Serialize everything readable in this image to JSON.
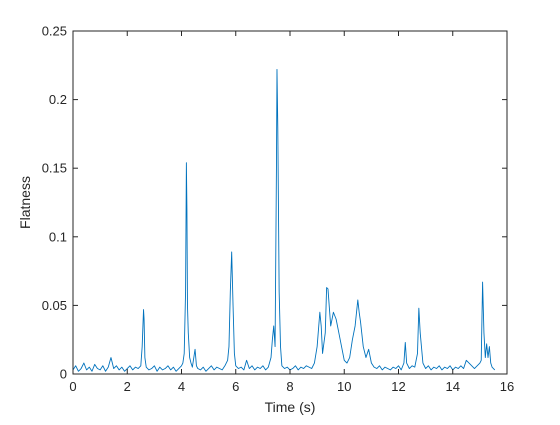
{
  "chart_data": {
    "type": "line",
    "title": "",
    "xlabel": "Time (s)",
    "ylabel": "Flatness",
    "xlim": [
      0,
      16
    ],
    "ylim": [
      0,
      0.25
    ],
    "xticks": [
      0,
      2,
      4,
      6,
      8,
      10,
      12,
      14,
      16
    ],
    "xtick_labels": [
      "0",
      "2",
      "4",
      "6",
      "8",
      "10",
      "12",
      "14",
      "16"
    ],
    "yticks": [
      0,
      0.05,
      0.1,
      0.15,
      0.2,
      0.25
    ],
    "ytick_labels": [
      "0",
      "0.05",
      "0.1",
      "0.15",
      "0.2",
      "0.25"
    ],
    "grid": false,
    "series": [
      {
        "color": "#0072BD",
        "x": [
          0,
          0.1,
          0.2,
          0.3,
          0.4,
          0.5,
          0.6,
          0.7,
          0.8,
          0.9,
          1.0,
          1.1,
          1.2,
          1.3,
          1.4,
          1.45,
          1.5,
          1.6,
          1.7,
          1.8,
          1.9,
          2.0,
          2.1,
          2.2,
          2.3,
          2.4,
          2.5,
          2.55,
          2.6,
          2.62,
          2.65,
          2.7,
          2.8,
          2.9,
          3.0,
          3.1,
          3.2,
          3.3,
          3.4,
          3.5,
          3.6,
          3.7,
          3.8,
          3.9,
          4.0,
          4.05,
          4.1,
          4.15,
          4.18,
          4.2,
          4.22,
          4.25,
          4.3,
          4.35,
          4.4,
          4.5,
          4.55,
          4.6,
          4.7,
          4.8,
          4.9,
          5.0,
          5.1,
          5.2,
          5.3,
          5.4,
          5.5,
          5.6,
          5.7,
          5.75,
          5.8,
          5.85,
          5.9,
          5.95,
          6.0,
          6.1,
          6.2,
          6.3,
          6.4,
          6.5,
          6.6,
          6.7,
          6.8,
          6.9,
          7.0,
          7.1,
          7.2,
          7.3,
          7.35,
          7.4,
          7.45,
          7.5,
          7.52,
          7.55,
          7.6,
          7.65,
          7.7,
          7.8,
          7.9,
          8.0,
          8.1,
          8.2,
          8.3,
          8.4,
          8.5,
          8.6,
          8.7,
          8.8,
          8.9,
          9.0,
          9.1,
          9.15,
          9.2,
          9.3,
          9.35,
          9.4,
          9.5,
          9.6,
          9.7,
          9.8,
          9.9,
          10.0,
          10.1,
          10.2,
          10.3,
          10.4,
          10.5,
          10.55,
          10.6,
          10.7,
          10.8,
          10.9,
          11.0,
          11.1,
          11.2,
          11.3,
          11.4,
          11.5,
          11.6,
          11.7,
          11.8,
          11.9,
          12.0,
          12.1,
          12.2,
          12.25,
          12.3,
          12.4,
          12.5,
          12.6,
          12.7,
          12.75,
          12.8,
          12.9,
          13.0,
          13.1,
          13.2,
          13.3,
          13.4,
          13.5,
          13.6,
          13.7,
          13.8,
          13.9,
          14.0,
          14.1,
          14.2,
          14.3,
          14.4,
          14.5,
          14.6,
          14.7,
          14.8,
          14.9,
          15.0,
          15.05,
          15.1,
          15.15,
          15.2,
          15.25,
          15.3,
          15.35,
          15.4,
          15.45,
          15.5,
          15.55
        ],
        "y": [
          0.003,
          0.006,
          0.002,
          0.004,
          0.008,
          0.003,
          0.005,
          0.002,
          0.007,
          0.004,
          0.003,
          0.006,
          0.002,
          0.005,
          0.012,
          0.008,
          0.004,
          0.006,
          0.003,
          0.005,
          0.002,
          0.004,
          0.006,
          0.003,
          0.005,
          0.004,
          0.006,
          0.02,
          0.047,
          0.04,
          0.012,
          0.005,
          0.003,
          0.004,
          0.006,
          0.002,
          0.005,
          0.003,
          0.004,
          0.006,
          0.003,
          0.005,
          0.002,
          0.004,
          0.006,
          0.008,
          0.015,
          0.06,
          0.154,
          0.12,
          0.05,
          0.03,
          0.012,
          0.008,
          0.005,
          0.018,
          0.006,
          0.004,
          0.003,
          0.005,
          0.002,
          0.004,
          0.006,
          0.003,
          0.005,
          0.004,
          0.003,
          0.006,
          0.01,
          0.02,
          0.06,
          0.089,
          0.05,
          0.015,
          0.006,
          0.004,
          0.005,
          0.003,
          0.01,
          0.004,
          0.006,
          0.003,
          0.005,
          0.004,
          0.006,
          0.003,
          0.005,
          0.012,
          0.025,
          0.035,
          0.02,
          0.15,
          0.222,
          0.18,
          0.06,
          0.02,
          0.006,
          0.004,
          0.005,
          0.003,
          0.004,
          0.006,
          0.003,
          0.005,
          0.004,
          0.006,
          0.005,
          0.004,
          0.008,
          0.02,
          0.045,
          0.035,
          0.015,
          0.03,
          0.063,
          0.062,
          0.035,
          0.045,
          0.04,
          0.03,
          0.02,
          0.01,
          0.008,
          0.012,
          0.025,
          0.035,
          0.054,
          0.045,
          0.038,
          0.02,
          0.012,
          0.018,
          0.008,
          0.005,
          0.004,
          0.006,
          0.003,
          0.005,
          0.004,
          0.003,
          0.005,
          0.004,
          0.006,
          0.003,
          0.008,
          0.023,
          0.008,
          0.004,
          0.006,
          0.005,
          0.015,
          0.048,
          0.03,
          0.008,
          0.004,
          0.006,
          0.003,
          0.005,
          0.004,
          0.006,
          0.003,
          0.005,
          0.004,
          0.006,
          0.003,
          0.005,
          0.004,
          0.006,
          0.004,
          0.01,
          0.008,
          0.006,
          0.004,
          0.006,
          0.008,
          0.01,
          0.067,
          0.03,
          0.012,
          0.022,
          0.012,
          0.02,
          0.008,
          0.005,
          0.004,
          0.003
        ]
      }
    ]
  }
}
